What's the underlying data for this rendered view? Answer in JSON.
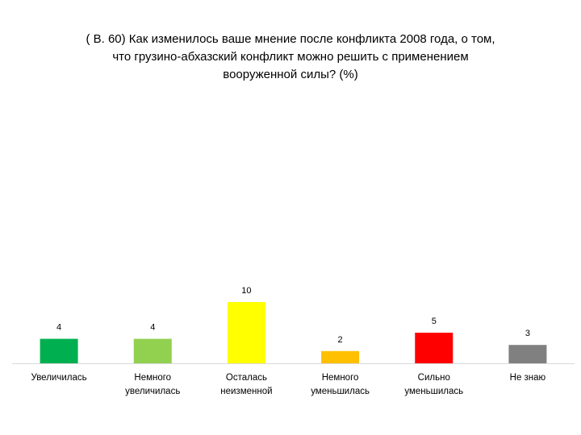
{
  "title": "( В. 60)  Как изменилось ваше мнение после конфликта  2008 года, о том,\nчто грузино-абхазский конфликт можно решить с применением\nвооруженной силы? (%)",
  "chart_data": {
    "type": "bar",
    "title": "( В. 60)  Как изменилось ваше мнение после конфликта  2008 года, о том, что грузино-абхазский конфликт можно решить с применением вооруженной силы? (%)",
    "categories": [
      "Увеличилась",
      "Немного\nувеличилась",
      "Осталась\nнеизменной",
      "Немного\nуменьшилась",
      "Сильно\nуменьшилась",
      "Не знаю"
    ],
    "values": [
      4,
      4,
      10,
      2,
      5,
      3
    ],
    "colors": [
      "#00b050",
      "#92d050",
      "#ffff00",
      "#ffc000",
      "#ff0000",
      "#808080"
    ],
    "xlabel": "",
    "ylabel": "",
    "ylim": [
      0,
      10
    ],
    "grid": false,
    "legend": "none",
    "axis_line_color": "#d9d9d9"
  }
}
